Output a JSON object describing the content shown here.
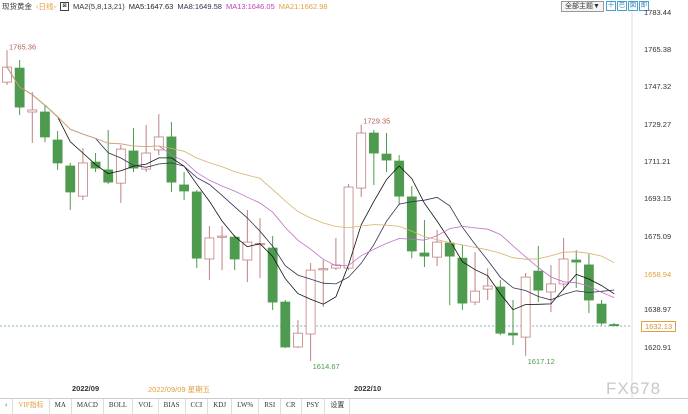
{
  "header": {
    "title": "现货黄金",
    "period": "‹日线›",
    "ma_params": "MA2(5,8,13,21)",
    "ma5": "MA5:1647.63",
    "ma8": "MA8:1649.58",
    "ma13": "MA13:1646.05",
    "ma21": "MA21:1662.98"
  },
  "toolbar": {
    "theme_button": "全部主题▼",
    "tools": [
      "十",
      "巴",
      "図",
      "即"
    ]
  },
  "axis": {
    "labels": [
      "1783.44",
      "1765.38",
      "1747.32",
      "1729.27",
      "1711.21",
      "1693.15",
      "1675.09",
      "1658.94",
      "1638.97",
      "1620.91"
    ],
    "current": "1632.13"
  },
  "dates": {
    "sep": "2022/09",
    "selected": "2022/09/09 星期五",
    "oct": "2022/10"
  },
  "tabs": [
    "VIP指标",
    "MA",
    "MACD",
    "BOLL",
    "VOL",
    "BIAS",
    "CCI",
    "KDJ",
    "LW%",
    "RSI",
    "CR",
    "PSY",
    "设置"
  ],
  "watermark": "FX678",
  "colors": {
    "up": "#c08080",
    "down": "#4e9a4e",
    "ma5": "#111111",
    "ma8": "#333355",
    "ma13": "#c070c8",
    "ma21": "#d8b070",
    "current_line": "#5aa0a0"
  },
  "chart_data": {
    "type": "candlestick",
    "ylim": [
      1620.91,
      1783.44
    ],
    "annotations": {
      "high1": "1765.36",
      "high2": "1729.35",
      "low1": "1614.67",
      "low2": "1617.12"
    },
    "ohlc": [
      [
        1749.9,
        1765.36,
        1748.5,
        1757.2
      ],
      [
        1756.7,
        1760.6,
        1733.9,
        1737.8
      ],
      [
        1735.4,
        1745.1,
        1720.4,
        1736.4
      ],
      [
        1735.4,
        1738.8,
        1720.8,
        1723.3
      ],
      [
        1721.8,
        1726.2,
        1707.3,
        1710.7
      ],
      [
        1709.2,
        1710.7,
        1687.9,
        1696.6
      ],
      [
        1694.6,
        1717.9,
        1692.7,
        1710.7
      ],
      [
        1711.1,
        1715.5,
        1706.3,
        1708.2
      ],
      [
        1707.3,
        1726.7,
        1700.5,
        1701.4
      ],
      [
        1700.9,
        1719.4,
        1691.3,
        1717.4
      ],
      [
        1716.5,
        1727.6,
        1706.3,
        1708.2
      ],
      [
        1707.7,
        1729.1,
        1706.3,
        1715.5
      ],
      [
        1717.0,
        1734.4,
        1714.5,
        1723.3
      ],
      [
        1723.3,
        1730.5,
        1696.6,
        1701.4
      ],
      [
        1700.0,
        1706.3,
        1692.7,
        1697.1
      ],
      [
        1696.6,
        1697.5,
        1659.7,
        1664.5
      ],
      [
        1664.1,
        1680.1,
        1653.9,
        1674.3
      ],
      [
        1674.7,
        1680.1,
        1658.7,
        1675.2
      ],
      [
        1674.7,
        1675.7,
        1658.7,
        1664.1
      ],
      [
        1663.6,
        1687.9,
        1652.9,
        1672.3
      ],
      [
        1671.3,
        1684.0,
        1654.8,
        1671.6
      ],
      [
        1669.4,
        1675.2,
        1639.3,
        1643.2
      ],
      [
        1643.2,
        1644.2,
        1620.9,
        1621.4
      ],
      [
        1621.4,
        1634.4,
        1620.9,
        1628.1
      ],
      [
        1627.7,
        1662.1,
        1614.67,
        1658.7
      ],
      [
        1659.2,
        1663.6,
        1640.8,
        1659.4
      ],
      [
        1659.7,
        1674.3,
        1658.7,
        1661.2
      ],
      [
        1659.7,
        1700.5,
        1658.7,
        1699.0
      ],
      [
        1698.5,
        1729.35,
        1694.2,
        1725.2
      ],
      [
        1725.2,
        1726.7,
        1700.0,
        1715.5
      ],
      [
        1715.0,
        1725.2,
        1706.3,
        1712.1
      ],
      [
        1711.6,
        1714.5,
        1690.3,
        1694.6
      ],
      [
        1694.2,
        1699.5,
        1664.5,
        1668.0
      ],
      [
        1667.0,
        1683.0,
        1660.2,
        1665.5
      ],
      [
        1665.0,
        1678.2,
        1660.7,
        1672.3
      ],
      [
        1671.8,
        1673.3,
        1641.7,
        1665.5
      ],
      [
        1664.5,
        1670.9,
        1639.3,
        1642.7
      ],
      [
        1643.2,
        1667.4,
        1641.7,
        1648.5
      ],
      [
        1649.5,
        1659.7,
        1644.2,
        1651.0
      ],
      [
        1650.5,
        1653.9,
        1627.2,
        1628.1
      ],
      [
        1628.1,
        1644.2,
        1622.3,
        1627.2
      ],
      [
        1626.2,
        1657.3,
        1617.12,
        1655.3
      ],
      [
        1658.2,
        1670.4,
        1643.2,
        1649.0
      ],
      [
        1648.1,
        1661.2,
        1638.3,
        1652.0
      ],
      [
        1652.0,
        1674.3,
        1649.0,
        1664.1
      ],
      [
        1663.6,
        1668.4,
        1650.0,
        1662.6
      ],
      [
        1661.2,
        1666.5,
        1637.9,
        1644.2
      ],
      [
        1642.2,
        1644.2,
        1632.0,
        1633.0
      ],
      [
        1632.3,
        1633.0,
        1631.5,
        1632.13
      ]
    ],
    "ma_periods": [
      5,
      8,
      13,
      21
    ],
    "current_price": 1632.13
  }
}
